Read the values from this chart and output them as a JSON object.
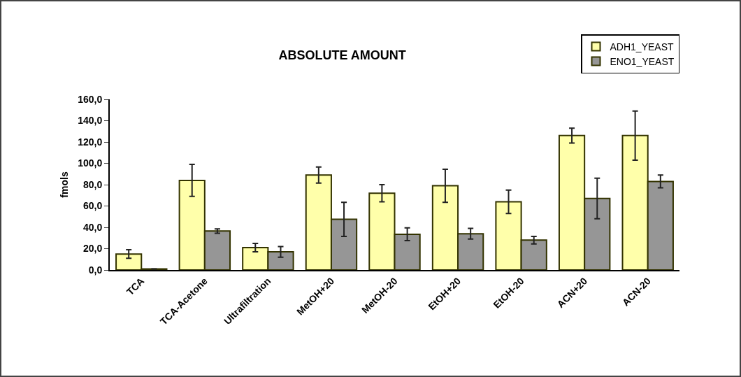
{
  "chart_data": {
    "type": "bar",
    "title": "ABSOLUTE AMOUNT",
    "ylabel": "fmols",
    "categories": [
      "TCA",
      "TCA-Acetone",
      "Ultrafiltration",
      "MetOH+20",
      "MetOH-20",
      "EtOH+20",
      "EtOH-20",
      "ACN+20",
      "ACN-20"
    ],
    "series": [
      {
        "name": "ADH1_YEAST",
        "color": "#ffffaa",
        "values": [
          15,
          84,
          21,
          89,
          72,
          79,
          64,
          126,
          126
        ],
        "errors": [
          4,
          15,
          4,
          7.5,
          8,
          15.5,
          11,
          7,
          23
        ]
      },
      {
        "name": "ENO1_YEAST",
        "color": "#969696",
        "values": [
          1,
          36.5,
          17,
          47.5,
          33.5,
          34,
          28,
          67,
          83
        ],
        "errors": [
          null,
          2,
          5,
          16,
          6,
          5,
          3.5,
          19,
          6
        ]
      }
    ],
    "ylim": [
      0,
      160
    ],
    "yticks": [
      {
        "value": 0,
        "label": "0,0"
      },
      {
        "value": 20,
        "label": "20,0"
      },
      {
        "value": 40,
        "label": "40,0"
      },
      {
        "value": 60,
        "label": "60,0"
      },
      {
        "value": 80,
        "label": "80,0"
      },
      {
        "value": 100,
        "label": "100,0"
      },
      {
        "value": 120,
        "label": "120,0"
      },
      {
        "value": 140,
        "label": "140,0"
      },
      {
        "value": 160,
        "label": "160,0"
      }
    ],
    "grid": false,
    "legend": "top right"
  }
}
